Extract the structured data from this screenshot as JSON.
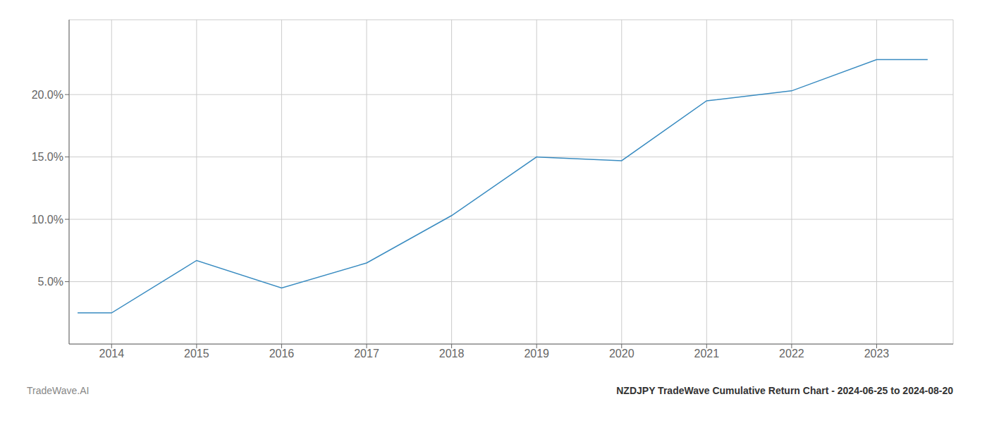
{
  "chart_data": {
    "type": "line",
    "title": "NZDJPY TradeWave Cumulative Return Chart - 2024-06-25 to 2024-08-20",
    "annotations": [
      "TradeWave.AI"
    ],
    "x": [
      2013.6,
      2014.0,
      2015.0,
      2016.0,
      2017.0,
      2018.0,
      2019.0,
      2020.0,
      2021.0,
      2022.0,
      2023.0,
      2023.6
    ],
    "values": [
      2.5,
      2.5,
      6.7,
      4.5,
      6.5,
      10.3,
      15.0,
      14.7,
      19.5,
      20.3,
      22.8,
      22.8
    ],
    "color": "#3a8cc1",
    "xlim": [
      2013.5,
      2023.9
    ],
    "ylim": [
      0,
      26
    ],
    "xticks": [
      2014,
      2015,
      2016,
      2017,
      2018,
      2019,
      2020,
      2021,
      2022,
      2023
    ],
    "yticks": [
      {
        "value": 5.0,
        "label": "5.0%"
      },
      {
        "value": 10.0,
        "label": "10.0%"
      },
      {
        "value": 15.0,
        "label": "15.0%"
      },
      {
        "value": 20.0,
        "label": "20.0%"
      }
    ],
    "grid": true
  }
}
